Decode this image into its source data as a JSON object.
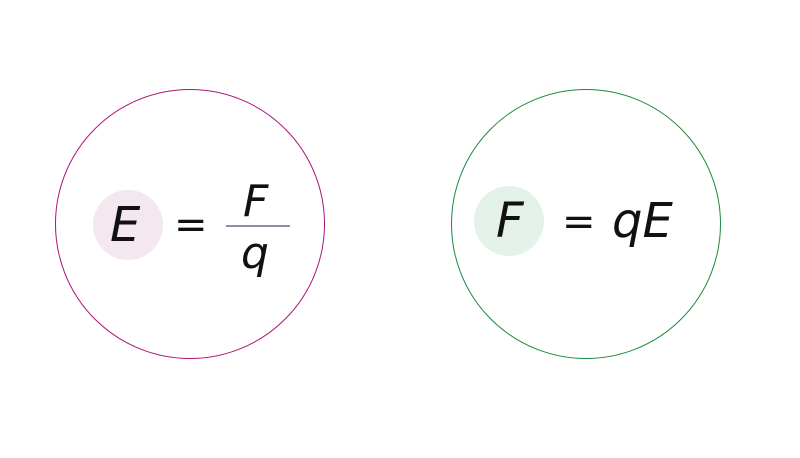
{
  "left_equation": {
    "lhs": "E",
    "equals": "=",
    "numerator": "F",
    "denominator": "q",
    "ring_color": "#b0127a",
    "highlight_color": "#f3e7f0"
  },
  "right_equation": {
    "lhs": "F",
    "equals": "=",
    "rhs": "qE",
    "ring_color": "#1e8a3c",
    "highlight_color": "#e3f1e8"
  }
}
